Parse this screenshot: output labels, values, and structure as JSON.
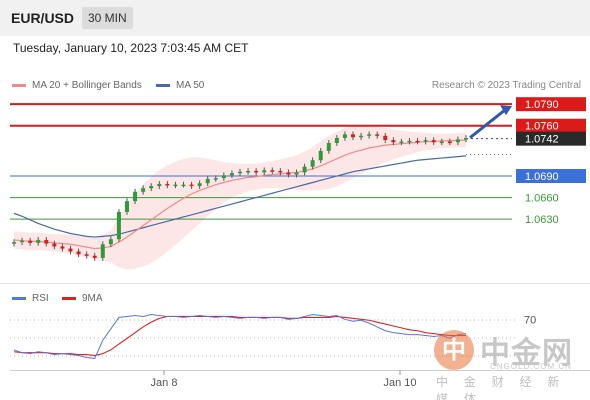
{
  "header": {
    "symbol": "EUR/USD",
    "timeframe": "30 MIN",
    "datetime": "Tuesday, January 10, 2023 7:03:45 AM CET"
  },
  "legend": {
    "ma20_label": "MA 20 + Bollinger Bands",
    "ma50_label": "MA 50",
    "credit": "Research © 2023 Trading Central"
  },
  "rsi_legend": {
    "rsi_label": "RSI",
    "ma9_label": "9MA"
  },
  "colors": {
    "resistance": "#dd1a1a",
    "support": "#3d6fd8",
    "support_green": "#3a9a3a",
    "ma20": "#f08a8a",
    "ma50": "#4a6aa0",
    "bollinger_fill": "#fde3e3",
    "candle_up": "#2f9a3a",
    "candle_down": "#d62020",
    "rsi": "#5577dd",
    "rsi_ma9": "#dd2222",
    "arrow": "#3358a8"
  },
  "chart_data": {
    "type": "candlestick",
    "instrument": "EUR/USD",
    "timeframe": "30 MIN",
    "x_ticks": [
      "Jan 8",
      "Jan 10"
    ],
    "ylim": [
      1.0555,
      1.08
    ],
    "levels": [
      {
        "value": 1.079,
        "label": "1.0790",
        "kind": "resistance",
        "style": "box"
      },
      {
        "value": 1.076,
        "label": "1.0760",
        "kind": "resistance",
        "style": "box"
      },
      {
        "value": 1.0742,
        "label": "1.0742",
        "kind": "current",
        "style": "box-dark"
      },
      {
        "value": 1.069,
        "label": "1.0690",
        "kind": "support",
        "style": "box-blue"
      },
      {
        "value": 1.066,
        "label": "1.0660",
        "kind": "support",
        "style": "text-green"
      },
      {
        "value": 1.063,
        "label": "1.0630",
        "kind": "support",
        "style": "text-green"
      }
    ],
    "close": [
      1.0598,
      1.06,
      1.0597,
      1.0601,
      1.0596,
      1.0592,
      1.0589,
      1.0585,
      1.0581,
      1.0579,
      1.0576,
      1.0595,
      1.0602,
      1.064,
      1.0655,
      1.0668,
      1.0673,
      1.0676,
      1.0679,
      1.0677,
      1.0678,
      1.0678,
      1.0676,
      1.068,
      1.0686,
      1.0687,
      1.0691,
      1.0694,
      1.0696,
      1.0697,
      1.0695,
      1.0698,
      1.0697,
      1.0695,
      1.0692,
      1.0695,
      1.0703,
      1.0712,
      1.0725,
      1.0736,
      1.0743,
      1.0748,
      1.0744,
      1.0746,
      1.0748,
      1.0746,
      1.074,
      1.0737,
      1.0738,
      1.0739,
      1.0738,
      1.074,
      1.0737,
      1.0738,
      1.0737,
      1.0741,
      1.0743
    ],
    "ma50": [
      1.0638,
      1.0634,
      1.0629,
      1.0624,
      1.062,
      1.0616,
      1.0613,
      1.061,
      1.0608,
      1.0606,
      1.0605,
      1.0606,
      1.0607,
      1.0609,
      1.0612,
      1.0615,
      1.0618,
      1.0621,
      1.0624,
      1.0627,
      1.063,
      1.0633,
      1.0636,
      1.0639,
      1.0642,
      1.0645,
      1.0648,
      1.0651,
      1.0654,
      1.0657,
      1.066,
      1.0663,
      1.0666,
      1.0669,
      1.0672,
      1.0675,
      1.0678,
      1.0681,
      1.0684,
      1.0687,
      1.069,
      1.0693,
      1.0696,
      1.0698,
      1.07,
      1.0702,
      1.0704,
      1.0706,
      1.0708,
      1.071,
      1.0712,
      1.0713,
      1.0714,
      1.0715,
      1.0716,
      1.0717,
      1.0718
    ],
    "ma20": [
      1.0601,
      1.06,
      1.0599,
      1.0599,
      1.0598,
      1.0597,
      1.0596,
      1.0595,
      1.0593,
      1.0591,
      1.0589,
      1.059,
      1.0592,
      1.0598,
      1.0605,
      1.0613,
      1.0621,
      1.0629,
      1.0637,
      1.0645,
      1.0652,
      1.0659,
      1.0665,
      1.067,
      1.0674,
      1.0678,
      1.0681,
      1.0684,
      1.0686,
      1.0688,
      1.0689,
      1.0691,
      1.0692,
      1.0693,
      1.0694,
      1.0695,
      1.0697,
      1.07,
      1.0704,
      1.0709,
      1.0714,
      1.0719,
      1.0723,
      1.0726,
      1.0729,
      1.0731,
      1.0733,
      1.0734,
      1.0735,
      1.0736,
      1.0737,
      1.0738,
      1.0738,
      1.0739,
      1.0739,
      1.074,
      1.074
    ],
    "bb_width": [
      0.0012,
      0.0012,
      0.0012,
      0.0012,
      0.0012,
      0.0012,
      0.0013,
      0.0013,
      0.0014,
      0.0014,
      0.0015,
      0.0018,
      0.0022,
      0.0035,
      0.0045,
      0.0052,
      0.0057,
      0.006,
      0.0061,
      0.006,
      0.0058,
      0.0055,
      0.0051,
      0.0046,
      0.004,
      0.0034,
      0.0028,
      0.0024,
      0.0021,
      0.0019,
      0.0018,
      0.0018,
      0.0019,
      0.002,
      0.0022,
      0.0024,
      0.0027,
      0.003,
      0.0034,
      0.0037,
      0.0038,
      0.0038,
      0.0036,
      0.0033,
      0.003,
      0.0027,
      0.0024,
      0.0021,
      0.0018,
      0.0016,
      0.0014,
      0.0012,
      0.0011,
      0.001,
      0.001,
      0.001,
      0.001
    ],
    "projection": {
      "from": 1.0742,
      "to": 1.079
    },
    "rsi": {
      "levels": [
        70
      ],
      "ylim": [
        20,
        85
      ],
      "rsi": [
        38,
        35,
        34,
        36,
        35,
        33,
        34,
        33,
        32,
        30,
        29,
        48,
        60,
        72,
        73,
        74,
        73,
        75,
        74,
        73,
        73,
        72,
        73,
        74,
        73,
        72,
        73,
        72,
        71,
        72,
        72,
        71,
        72,
        72,
        70,
        71,
        73,
        75,
        74,
        73,
        74,
        70,
        68,
        69,
        66,
        62,
        58,
        56,
        55,
        54,
        54,
        53,
        52,
        53,
        50,
        54,
        55
      ],
      "ma9": [
        36,
        35,
        35,
        35,
        35,
        34,
        34,
        34,
        33,
        33,
        32,
        34,
        38,
        44,
        50,
        56,
        62,
        67,
        71,
        73,
        73,
        73,
        73,
        73,
        73,
        73,
        73,
        73,
        72,
        72,
        72,
        72,
        72,
        72,
        71,
        71,
        72,
        72,
        72,
        72,
        73,
        72,
        71,
        70,
        69,
        67,
        65,
        63,
        61,
        59,
        58,
        56,
        55,
        54,
        53,
        53,
        53
      ]
    }
  },
  "watermark": {
    "logo": "中",
    "chinese": "中金网",
    "domain": "CNGOLD.COM.CN",
    "tagline": "中 金 财 经 新 媒 体"
  }
}
